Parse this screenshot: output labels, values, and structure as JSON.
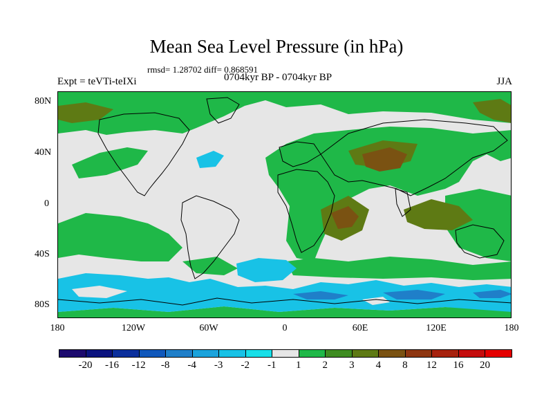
{
  "title": "Mean Sea Level Pressure (in hPa)",
  "stats_line": "rmsd= 1.28702 diff= 0.868591",
  "left_label": "Expt = teVTi-teIXi",
  "center_label": "0704kyr BP - 0704kyr BP",
  "right_label": "JJA",
  "map": {
    "projection": "cylindrical-equidistant",
    "lon_range": [
      -180,
      180
    ],
    "lat_range": [
      -90,
      90
    ],
    "lat_ticks": [
      "80N",
      "40N",
      "0",
      "40S",
      "80S"
    ],
    "lon_ticks": [
      "180",
      "120W",
      "60W",
      "0",
      "60E",
      "120E",
      "180"
    ],
    "background_color": "#e6e6e6",
    "coastline_color": "#000000"
  },
  "colorbar": {
    "levels": [
      "-20",
      "-16",
      "-12",
      "-8",
      "-4",
      "-3",
      "-2",
      "-1",
      "1",
      "2",
      "3",
      "4",
      "8",
      "12",
      "16",
      "20"
    ],
    "colors": [
      "#1c0a6e",
      "#0b137f",
      "#0b2f9c",
      "#1058bb",
      "#1f7fc9",
      "#1ba3dc",
      "#18c2e6",
      "#18dfe8",
      "#e6e6e6",
      "#1fb848",
      "#3e8c21",
      "#5e7a14",
      "#7a5212",
      "#8e3611",
      "#a7220e",
      "#c50d0d",
      "#e50000"
    ]
  }
}
